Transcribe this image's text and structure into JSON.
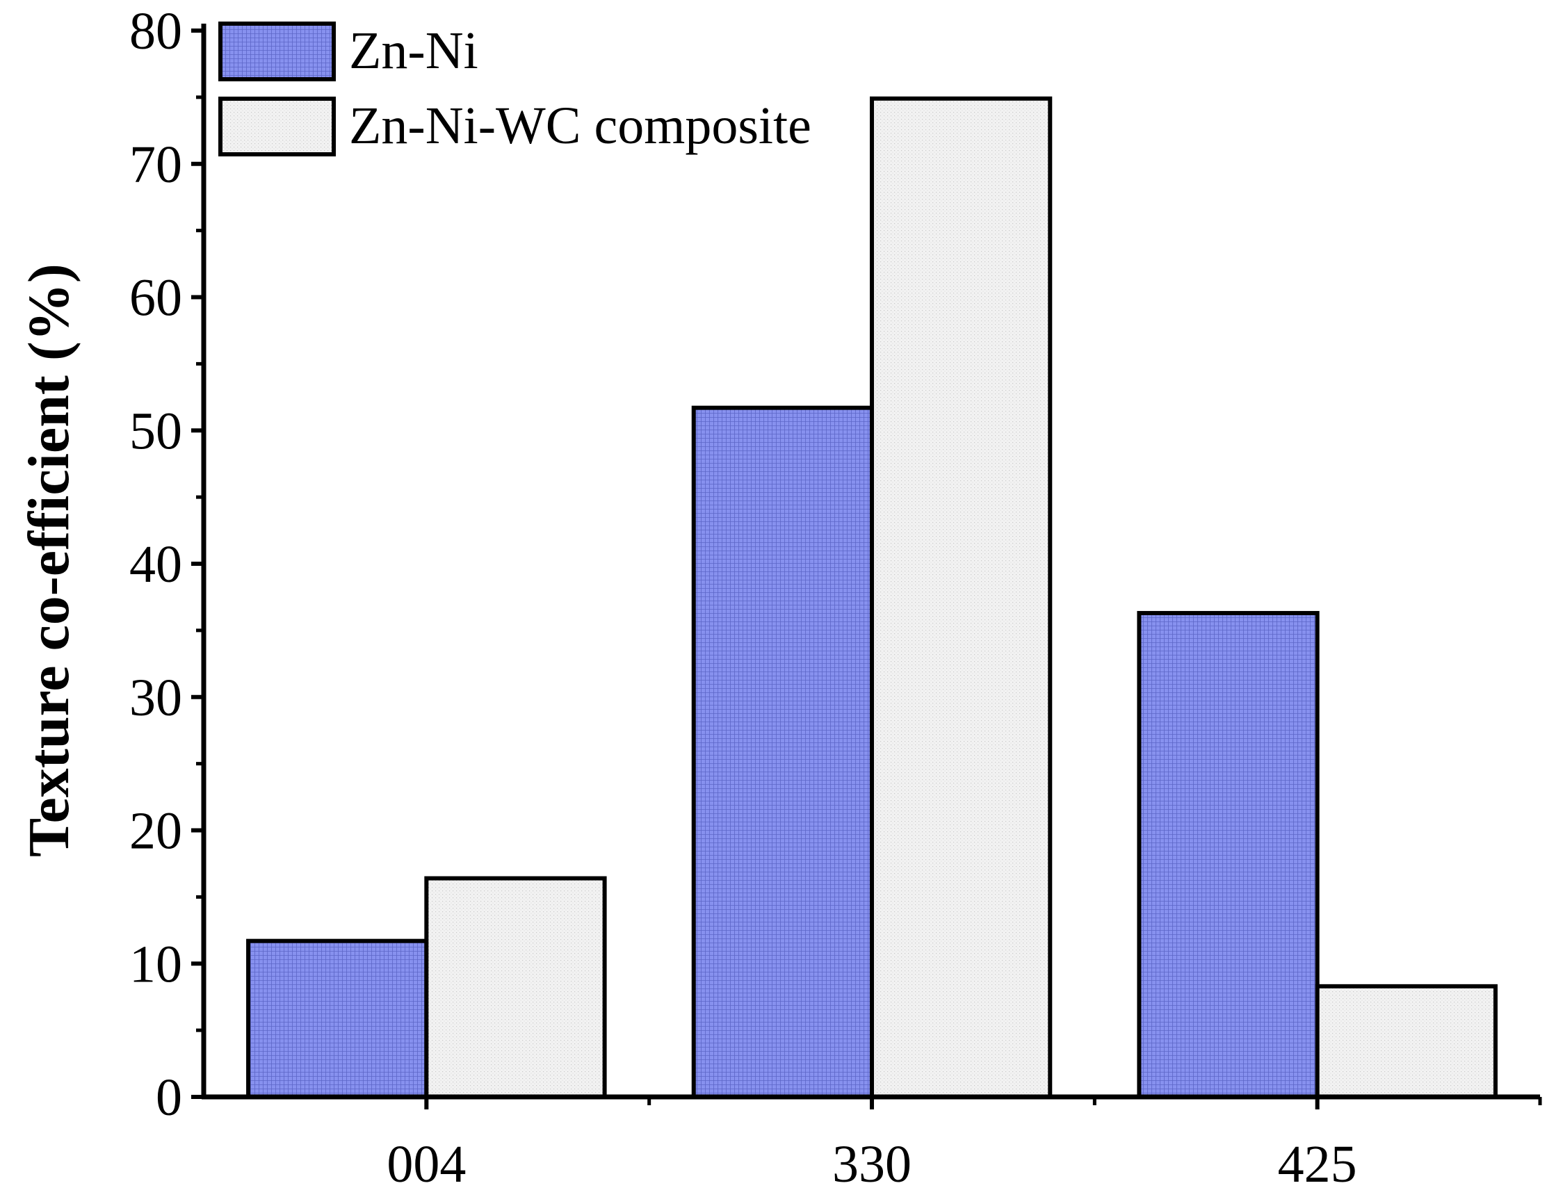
{
  "chart_data": {
    "type": "bar",
    "categories": [
      "004",
      "330",
      "425"
    ],
    "series": [
      {
        "name": "Zn-Ni",
        "values": [
          11.7,
          51.7,
          36.3
        ],
        "color": "#8791ef"
      },
      {
        "name": "Zn-Ni-WC composite",
        "values": [
          16.4,
          74.9,
          8.3
        ],
        "color": "#ececec"
      }
    ],
    "title": "",
    "xlabel": "",
    "ylabel": "Texture co-efficient (%)",
    "ylim": [
      0,
      80
    ],
    "yticks": [
      "0",
      "10",
      "20",
      "30",
      "40",
      "50",
      "60",
      "70",
      "80"
    ],
    "grid": false,
    "legend_position": "top-left"
  }
}
